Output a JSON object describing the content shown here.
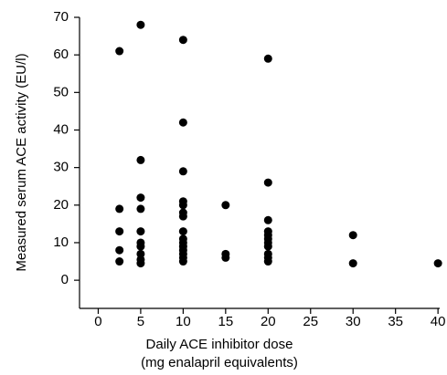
{
  "chart_data": {
    "type": "scatter",
    "x_label": [
      "Daily ACE inhibitor dose",
      "(mg enalapril equivalents)"
    ],
    "y_label": "Measured serum ACE activity (EU/l)",
    "x": [
      2.5,
      2.5,
      2.5,
      2.5,
      2.5,
      5,
      5,
      5,
      5,
      5,
      5,
      5,
      5,
      5,
      5,
      10,
      10,
      10,
      10,
      10,
      10,
      10,
      10,
      10,
      10,
      10,
      10,
      10,
      10,
      10,
      15,
      15,
      15,
      20,
      20,
      20,
      20,
      20,
      20,
      20,
      20,
      20,
      20,
      20,
      30,
      30,
      40
    ],
    "values": [
      61,
      19,
      13,
      8,
      5,
      68,
      32,
      22,
      19,
      13,
      10,
      9,
      7,
      5.5,
      4.5,
      64,
      42,
      29,
      21,
      20,
      18,
      17,
      13,
      11,
      10,
      9,
      8,
      7,
      6,
      5,
      20,
      7,
      6,
      59,
      26,
      16,
      13,
      12,
      11,
      10,
      9,
      7,
      6,
      5,
      12,
      4.5,
      4.5
    ],
    "color": "#000000",
    "xlim": [
      -2.2,
      40.2
    ],
    "xticks": [
      0,
      5,
      10,
      15,
      20,
      25,
      30,
      35,
      40
    ],
    "ylim": [
      -7.5,
      70
    ],
    "yticks": [
      0,
      10,
      20,
      30,
      40,
      50,
      60,
      70
    ]
  }
}
